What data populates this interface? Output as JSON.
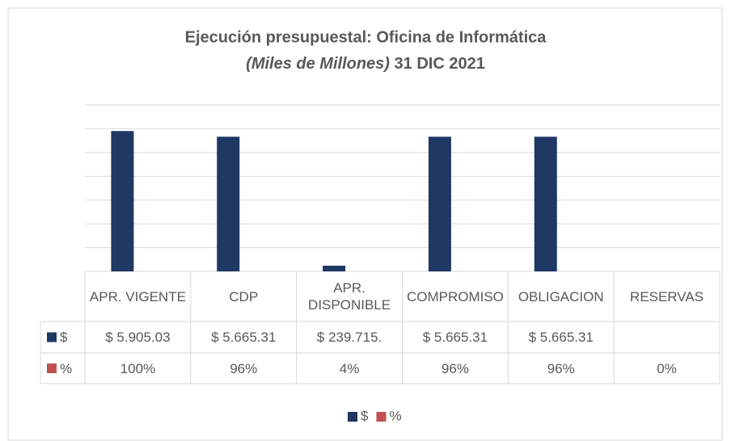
{
  "chart_data": {
    "type": "bar",
    "title": "Ejecución presupuestal: Oficina de Informática",
    "subtitle_italic": "(Miles de Millones)",
    "subtitle_date": "31 DIC 2021",
    "categories": [
      "APR. VIGENTE",
      "CDP",
      "APR. DISPONIBLE",
      "COMPROMISO",
      "OBLIGACION",
      "RESERVAS"
    ],
    "series": [
      {
        "name": "$",
        "color": "#1f3864",
        "values": [
          5905.03,
          5665.31,
          239.715,
          5665.31,
          5665.31,
          null
        ],
        "value_labels": [
          "$ 5.905.03",
          "$ 5.665.31",
          "$ 239.715.",
          "$ 5.665.31",
          "$ 5.665.31",
          null
        ]
      },
      {
        "name": "%",
        "color": "#c0504d",
        "values": [
          1,
          0.96,
          0.04,
          0.96,
          0.96,
          0
        ],
        "value_labels": [
          "100%",
          "96%",
          "4%",
          "96%",
          "96%",
          "0%"
        ]
      }
    ],
    "ylim": [
      0,
      7000
    ],
    "yticks": [
      0,
      1000,
      2000,
      3000,
      4000,
      5000,
      6000,
      7000
    ],
    "grid": true,
    "legend": "bottom"
  }
}
